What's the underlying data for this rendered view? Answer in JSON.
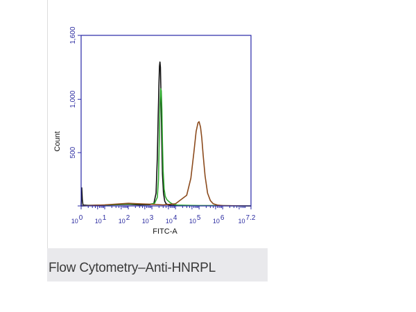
{
  "caption": "Flow Cytometry–Anti-HNRPL",
  "chart_data": {
    "type": "line",
    "title": "",
    "xlabel": "FITC-A",
    "ylabel": "Count",
    "xscale": "log",
    "xlim": [
      1,
      15848931.92
    ],
    "ylim": [
      0,
      1600
    ],
    "grid": false,
    "legend": "none",
    "y_ticks": [
      {
        "value": 0,
        "label": ""
      },
      {
        "value": 500,
        "label": "500"
      },
      {
        "value": 1000,
        "label": "1,000"
      },
      {
        "value": 1600,
        "label": "1,600"
      }
    ],
    "x_ticks": [
      {
        "value": 1,
        "base": "10",
        "exp": "0"
      },
      {
        "value": 10,
        "base": "10",
        "exp": "1"
      },
      {
        "value": 100,
        "base": "10",
        "exp": "2"
      },
      {
        "value": 1000,
        "base": "10",
        "exp": "3"
      },
      {
        "value": 10000,
        "base": "10",
        "exp": "4"
      },
      {
        "value": 100000,
        "base": "10",
        "exp": "5"
      },
      {
        "value": 1000000,
        "base": "10",
        "exp": "6"
      },
      {
        "value": 15848931.92,
        "base": "10",
        "exp": "7.2"
      }
    ],
    "series": [
      {
        "color": "#111111",
        "x": [
          1,
          1.06,
          1.12,
          1.2,
          2,
          10,
          100,
          300,
          800,
          1200,
          1500,
          1700,
          1850,
          2000,
          2100,
          2200,
          2300,
          2450,
          2600,
          2800,
          3100,
          3500,
          4000,
          5000,
          7000,
          10000,
          100000,
          1000000,
          15848931.92
        ],
        "y": [
          0,
          170,
          60,
          8,
          5,
          8,
          15,
          10,
          12,
          20,
          120,
          450,
          850,
          1150,
          1310,
          1350,
          1300,
          1000,
          650,
          300,
          120,
          45,
          20,
          10,
          5,
          3,
          2,
          2,
          0
        ]
      },
      {
        "color": "#2ea82e",
        "x": [
          1,
          10,
          100,
          300,
          800,
          1300,
          1700,
          1900,
          2050,
          2200,
          2350,
          2500,
          2650,
          2800,
          3000,
          3300,
          3700,
          4300,
          5000,
          6000,
          8000,
          12000,
          100000,
          1000000,
          15848931.92
        ],
        "y": [
          0,
          8,
          20,
          18,
          15,
          25,
          80,
          250,
          600,
          950,
          1100,
          1080,
          900,
          600,
          330,
          160,
          90,
          60,
          45,
          30,
          15,
          8,
          3,
          2,
          0
        ]
      },
      {
        "color": "#8b4a1c",
        "x": [
          1,
          10,
          100,
          300,
          1000,
          3000,
          10000,
          30000,
          45000,
          60000,
          75000,
          90000,
          100000,
          115000,
          130000,
          150000,
          180000,
          230000,
          300000,
          400000,
          600000,
          1000000,
          15848931.92
        ],
        "y": [
          0,
          10,
          25,
          20,
          15,
          10,
          20,
          100,
          260,
          500,
          700,
          780,
          790,
          740,
          640,
          470,
          280,
          120,
          50,
          20,
          8,
          3,
          0
        ]
      }
    ]
  }
}
